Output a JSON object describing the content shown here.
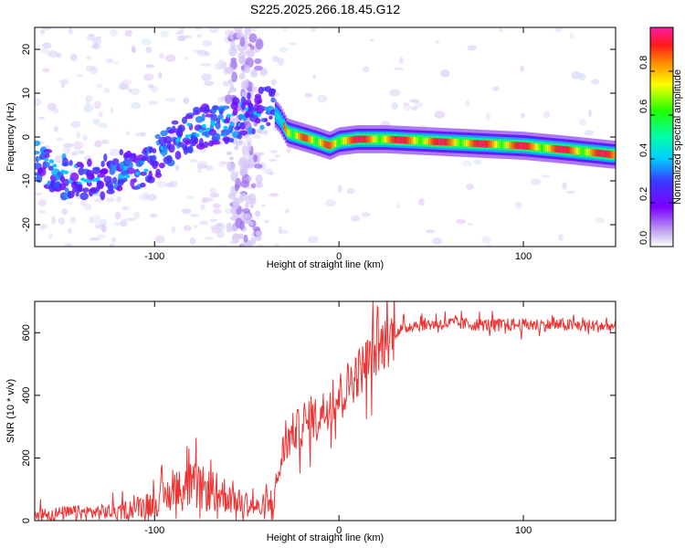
{
  "title": "S225.2025.266.18.45.G12",
  "chart_data": [
    {
      "type": "heatmap",
      "title": "S225.2025.266.18.45.G12",
      "xlabel": "Height of straight line (km)",
      "ylabel": "Frequency (Hz)",
      "xlim": [
        -165,
        150
      ],
      "ylim": [
        -25,
        25
      ],
      "xticks": [
        -100,
        0,
        100
      ],
      "yticks": [
        -20,
        -10,
        0,
        10,
        20
      ],
      "ridge": {
        "x": [
          -165,
          -150,
          -135,
          -120,
          -105,
          -95,
          -85,
          -75,
          -65,
          -55,
          -45,
          -38,
          -32,
          -28,
          -20,
          -12,
          -5,
          0,
          10,
          25,
          50,
          75,
          100,
          125,
          148
        ],
        "freq": [
          -5,
          -9,
          -10,
          -8,
          -7,
          -3,
          1,
          2,
          3,
          4,
          6,
          7,
          4,
          1,
          0,
          -1,
          -2,
          -1,
          -0.5,
          -0.5,
          -1,
          -1.5,
          -2,
          -3,
          -4
        ]
      },
      "colorbar": {
        "label": "Normalized spectral amplitude",
        "range": [
          0.0,
          1.0
        ],
        "ticks": [
          0.0,
          0.2,
          0.4,
          0.6,
          0.8
        ],
        "tick_labels": [
          "0.0",
          "0.2",
          "0.4",
          "0.6",
          "0.8"
        ]
      }
    },
    {
      "type": "line",
      "xlabel": "Height of straight line (km)",
      "ylabel": "SNR (10 * v/v)",
      "xlim": [
        -165,
        150
      ],
      "ylim": [
        0,
        700
      ],
      "xticks": [
        -100,
        0,
        100
      ],
      "yticks": [
        0,
        200,
        400,
        600
      ],
      "series": [
        {
          "name": "SNR",
          "color": "#ee3333",
          "x": [
            -165,
            -140,
            -120,
            -100,
            -90,
            -80,
            -70,
            -60,
            -50,
            -40,
            -35,
            -30,
            -25,
            -20,
            -10,
            0,
            10,
            20,
            30,
            40,
            60,
            80,
            100,
            120,
            150
          ],
          "y": [
            20,
            25,
            30,
            55,
            90,
            110,
            95,
            80,
            55,
            30,
            80,
            230,
            280,
            300,
            340,
            400,
            470,
            540,
            600,
            625,
            630,
            625,
            625,
            625,
            620
          ]
        }
      ]
    }
  ]
}
